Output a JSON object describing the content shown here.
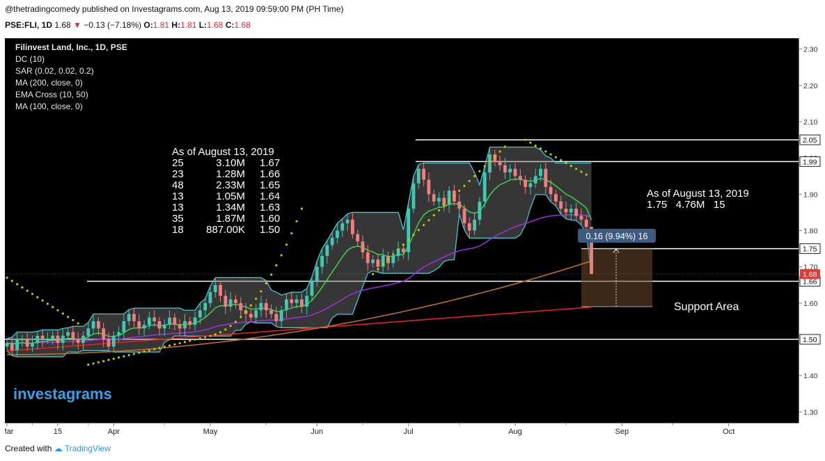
{
  "header": {
    "publisher": "@thetradingcomedy published on Investagrams.com, Aug 13, 2019 09:59:00 PM (PH Time)",
    "symbol": "PSE:FLI, 1D",
    "last": "1.68",
    "change": "−0.13 (−7.18%)",
    "o_label": "O:",
    "o": "1.81",
    "h_label": "H:",
    "h": "1.81",
    "l_label": "L:",
    "l": "1.68",
    "c_label": "C:",
    "c": "1.68"
  },
  "indicators": [
    "Filinvest Land, Inc., 1D, PSE",
    "DC (10)",
    "SAR (0.02, 0.02, 0.2)",
    "MA (200, close, 0)",
    "EMA Cross (10, 50)",
    "MA (100, close, 0)"
  ],
  "annotations": {
    "left_title": "As of August 13, 2019",
    "left_rows": [
      [
        "25",
        "3.10M",
        "1.67"
      ],
      [
        "23",
        "1.28M",
        "1.66"
      ],
      [
        "48",
        "2.33M",
        "1.65"
      ],
      [
        "13",
        "1.05M",
        "1.64"
      ],
      [
        "13",
        "1.34M",
        "1.63"
      ],
      [
        "35",
        "1.87M",
        "1.60"
      ],
      [
        "18",
        "887.00K",
        "1.50"
      ]
    ],
    "right_title": "As of August 13, 2019",
    "right_line": "1.75   4.76M   15",
    "measure": "0.16 (9.94%) 16",
    "support": "Support Area",
    "logo": "investagrams"
  },
  "footer": {
    "created_with": "Created with",
    "brand": "TradingView"
  },
  "chart_data": {
    "type": "candlestick",
    "symbol": "PSE:FLI",
    "ylim": [
      1.27,
      2.33
    ],
    "yticks": [
      "2.30",
      "2.20",
      "2.10",
      "2.00",
      "1.90",
      "1.80",
      "1.70",
      "1.60",
      "1.50",
      "1.40",
      "1.30"
    ],
    "xticks": [
      {
        "label": "Mar",
        "x": 0
      },
      {
        "label": "15",
        "x": 10
      },
      {
        "label": "Apr",
        "x": 21
      },
      {
        "label": "May",
        "x": 40
      },
      {
        "label": "Jun",
        "x": 61
      },
      {
        "label": "Jul",
        "x": 79
      },
      {
        "label": "Aug",
        "x": 100
      },
      {
        "label": "Sep",
        "x": 121
      },
      {
        "label": "Oct",
        "x": 142
      }
    ],
    "horizontal_levels": [
      "2.05",
      "1.99",
      "1.75",
      "1.66",
      "1.50"
    ],
    "last_price_label": "1.68",
    "closes": [
      1.49,
      1.47,
      1.5,
      1.5,
      1.48,
      1.49,
      1.51,
      1.5,
      1.5,
      1.51,
      1.49,
      1.51,
      1.52,
      1.5,
      1.49,
      1.51,
      1.53,
      1.55,
      1.53,
      1.5,
      1.48,
      1.51,
      1.52,
      1.55,
      1.57,
      1.55,
      1.53,
      1.54,
      1.56,
      1.55,
      1.53,
      1.54,
      1.56,
      1.54,
      1.53,
      1.55,
      1.54,
      1.56,
      1.58,
      1.6,
      1.63,
      1.65,
      1.62,
      1.59,
      1.61,
      1.6,
      1.58,
      1.57,
      1.56,
      1.58,
      1.6,
      1.58,
      1.57,
      1.55,
      1.58,
      1.61,
      1.6,
      1.61,
      1.59,
      1.62,
      1.66,
      1.7,
      1.73,
      1.76,
      1.78,
      1.8,
      1.82,
      1.83,
      1.79,
      1.77,
      1.74,
      1.71,
      1.72,
      1.7,
      1.73,
      1.71,
      1.73,
      1.75,
      1.74,
      1.86,
      1.93,
      1.97,
      1.94,
      1.9,
      1.88,
      1.89,
      1.87,
      1.91,
      1.88,
      1.86,
      1.82,
      1.8,
      1.83,
      1.88,
      1.96,
      2.01,
      1.99,
      1.98,
      1.96,
      1.97,
      1.95,
      1.94,
      1.92,
      1.93,
      1.95,
      1.97,
      1.92,
      1.9,
      1.88,
      1.86,
      1.85,
      1.86,
      1.84,
      1.83,
      1.81,
      1.68
    ],
    "series": [
      {
        "name": "SAR (0.02, 0.02, 0.2)",
        "color": "#c8c800"
      },
      {
        "name": "MA (200, close, 0)",
        "color": "#e8221e"
      },
      {
        "name": "EMA Cross (10, 50)",
        "colors": [
          "#40d050",
          "#a030e0"
        ]
      },
      {
        "name": "MA (100, close, 0)",
        "color": "#c07020"
      },
      {
        "name": "DC (10)",
        "color": "#40c8d8"
      }
    ],
    "up_color": "#40c8b0",
    "down_color": "#f08080"
  }
}
